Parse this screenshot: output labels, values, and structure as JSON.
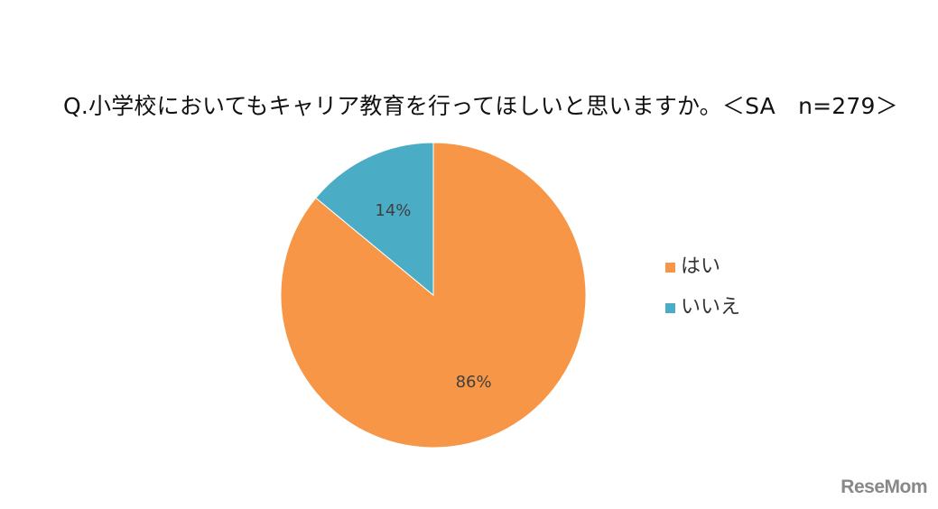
{
  "chart_data": {
    "type": "pie",
    "title": "Q.小学校においてもキャリア教育を行ってほしいと思いますか。＜SA　n=279＞",
    "categories": [
      "はい",
      "いいえ"
    ],
    "values": [
      86,
      14
    ],
    "data_labels": [
      "86%",
      "14%"
    ],
    "colors": [
      "#F79646",
      "#4BACC6"
    ],
    "legend_position": "right"
  },
  "watermark": {
    "text": "ReseMom"
  }
}
